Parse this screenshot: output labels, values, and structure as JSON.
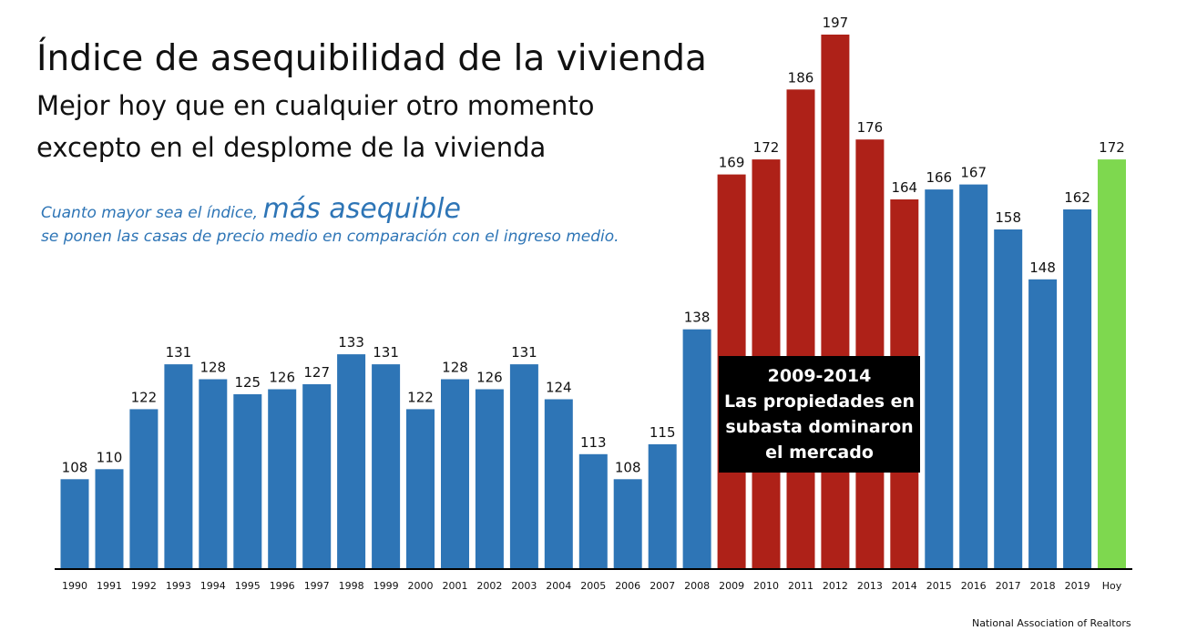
{
  "title": "Índice de asequibilidad de la vivienda",
  "subtitle_line1": "Mejor hoy que en cualquier otro momento",
  "subtitle_line2": "excepto en el desplome de la vivienda",
  "note": {
    "prefix": "Cuanto mayor sea el índice,",
    "emphasis": "más asequible",
    "line2": "se ponen las casas de precio medio en comparación con el ingreso medio."
  },
  "callout": {
    "years": "2009-2014",
    "line1": "Las propiedades en",
    "line2": "subasta dominaron",
    "line3": "el mercado"
  },
  "source": "National Association of Realtors",
  "colors": {
    "normal": "#2e75b6",
    "foreclosure": "#ae2118",
    "today": "#7ed84f",
    "axis": "#000000"
  },
  "chart_data": {
    "type": "bar",
    "title": "Índice de asequibilidad de la vivienda",
    "xlabel": "",
    "ylabel": "",
    "ylim": [
      90,
      200
    ],
    "grid": false,
    "categories": [
      "1990",
      "1991",
      "1992",
      "1993",
      "1994",
      "1995",
      "1996",
      "1997",
      "1998",
      "1999",
      "2000",
      "2001",
      "2002",
      "2003",
      "2004",
      "2005",
      "2006",
      "2007",
      "2008",
      "2009",
      "2010",
      "2011",
      "2012",
      "2013",
      "2014",
      "2015",
      "2016",
      "2017",
      "2018",
      "2019",
      "Hoy"
    ],
    "values": [
      108,
      110,
      122,
      131,
      128,
      125,
      126,
      127,
      133,
      131,
      122,
      128,
      126,
      131,
      124,
      113,
      108,
      115,
      138,
      169,
      172,
      186,
      197,
      176,
      164,
      166,
      167,
      158,
      148,
      162,
      172
    ],
    "groups": [
      "normal",
      "normal",
      "normal",
      "normal",
      "normal",
      "normal",
      "normal",
      "normal",
      "normal",
      "normal",
      "normal",
      "normal",
      "normal",
      "normal",
      "normal",
      "normal",
      "normal",
      "normal",
      "normal",
      "foreclosure",
      "foreclosure",
      "foreclosure",
      "foreclosure",
      "foreclosure",
      "foreclosure",
      "normal",
      "normal",
      "normal",
      "normal",
      "normal",
      "today"
    ]
  }
}
